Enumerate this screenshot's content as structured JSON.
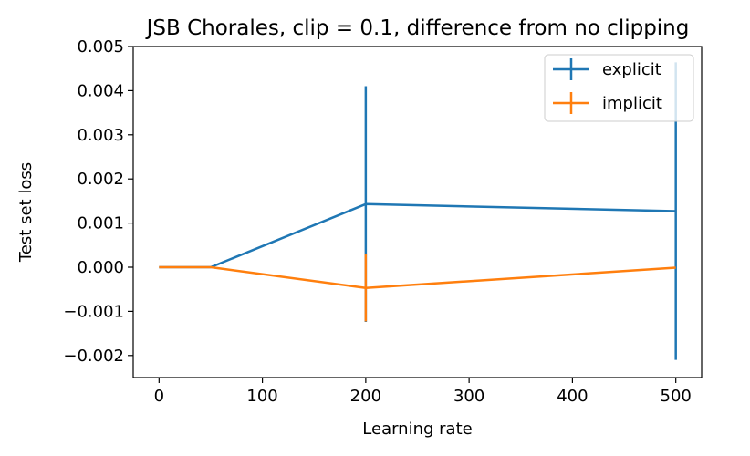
{
  "chart_data": {
    "type": "line",
    "title": "JSB Chorales, clip = 0.1, difference from no clipping",
    "xlabel": "Learning rate",
    "ylabel": "Test set loss",
    "xlim": [
      -25,
      525
    ],
    "ylim": [
      -0.0025,
      0.005
    ],
    "xticks": [
      0,
      100,
      200,
      300,
      400,
      500
    ],
    "xtick_labels": [
      "0",
      "100",
      "200",
      "300",
      "400",
      "500"
    ],
    "yticks": [
      -0.002,
      -0.001,
      0.0,
      0.001,
      0.002,
      0.003,
      0.004,
      0.005
    ],
    "ytick_labels": [
      "−0.002",
      "−0.001",
      "0.000",
      "0.001",
      "0.002",
      "0.003",
      "0.004",
      "0.005"
    ],
    "grid": false,
    "legend_position": "top-right",
    "series": [
      {
        "name": "explicit",
        "color": "#1f77b4",
        "x": [
          0,
          50,
          200,
          500
        ],
        "y": [
          0.0,
          0.0,
          0.00143,
          0.00127
        ],
        "yerr": [
          0.0,
          0.0,
          0.00267,
          0.00337
        ]
      },
      {
        "name": "implicit",
        "color": "#ff7f0e",
        "x": [
          0,
          50,
          200,
          500
        ],
        "y": [
          0.0,
          0.0,
          -0.00047,
          -1e-05
        ],
        "yerr": [
          0.0,
          0.0,
          0.00076,
          0.0
        ]
      }
    ]
  }
}
